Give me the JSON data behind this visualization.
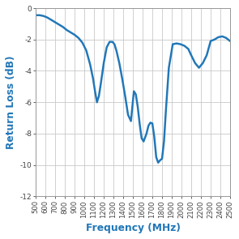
{
  "title": "",
  "xlabel": "Frequency (MHz)",
  "ylabel": "Return Loss (dB)",
  "line_color": "#2177B8",
  "line_width": 1.5,
  "background_color": "#ffffff",
  "grid_color": "#c8c8c8",
  "xlim": [
    500,
    2500
  ],
  "ylim": [
    -12,
    0
  ],
  "xticks": [
    500,
    600,
    700,
    800,
    900,
    1000,
    1100,
    1200,
    1300,
    1400,
    1500,
    1600,
    1700,
    1800,
    1900,
    2000,
    2100,
    2200,
    2300,
    2400,
    2500
  ],
  "yticks": [
    0,
    -2,
    -4,
    -6,
    -8,
    -10,
    -12
  ],
  "xlabel_color": "#2177B8",
  "ylabel_color": "#2177B8",
  "x": [
    500,
    540,
    580,
    620,
    660,
    700,
    740,
    780,
    820,
    860,
    900,
    940,
    980,
    1020,
    1060,
    1090,
    1110,
    1130,
    1150,
    1170,
    1200,
    1230,
    1260,
    1290,
    1310,
    1330,
    1360,
    1390,
    1420,
    1450,
    1480,
    1510,
    1530,
    1550,
    1570,
    1590,
    1610,
    1640,
    1660,
    1680,
    1700,
    1720,
    1740,
    1760,
    1780,
    1800,
    1820,
    1840,
    1870,
    1910,
    1950,
    1990,
    2030,
    2070,
    2100,
    2140,
    2180,
    2220,
    2260,
    2300,
    2340,
    2380,
    2420,
    2460,
    2500
  ],
  "y": [
    -0.45,
    -0.45,
    -0.5,
    -0.6,
    -0.75,
    -0.9,
    -1.05,
    -1.2,
    -1.4,
    -1.55,
    -1.7,
    -1.9,
    -2.2,
    -2.7,
    -3.6,
    -4.5,
    -5.3,
    -6.0,
    -5.6,
    -4.8,
    -3.5,
    -2.5,
    -2.15,
    -2.15,
    -2.3,
    -2.7,
    -3.5,
    -4.5,
    -5.6,
    -6.8,
    -7.2,
    -5.3,
    -5.5,
    -6.3,
    -7.4,
    -8.3,
    -8.5,
    -8.0,
    -7.5,
    -7.3,
    -7.35,
    -8.2,
    -9.5,
    -9.85,
    -9.7,
    -9.6,
    -8.5,
    -6.5,
    -3.8,
    -2.3,
    -2.25,
    -2.3,
    -2.4,
    -2.6,
    -3.0,
    -3.5,
    -3.8,
    -3.5,
    -3.0,
    -2.1,
    -2.0,
    -1.85,
    -1.8,
    -1.9,
    -2.1
  ]
}
